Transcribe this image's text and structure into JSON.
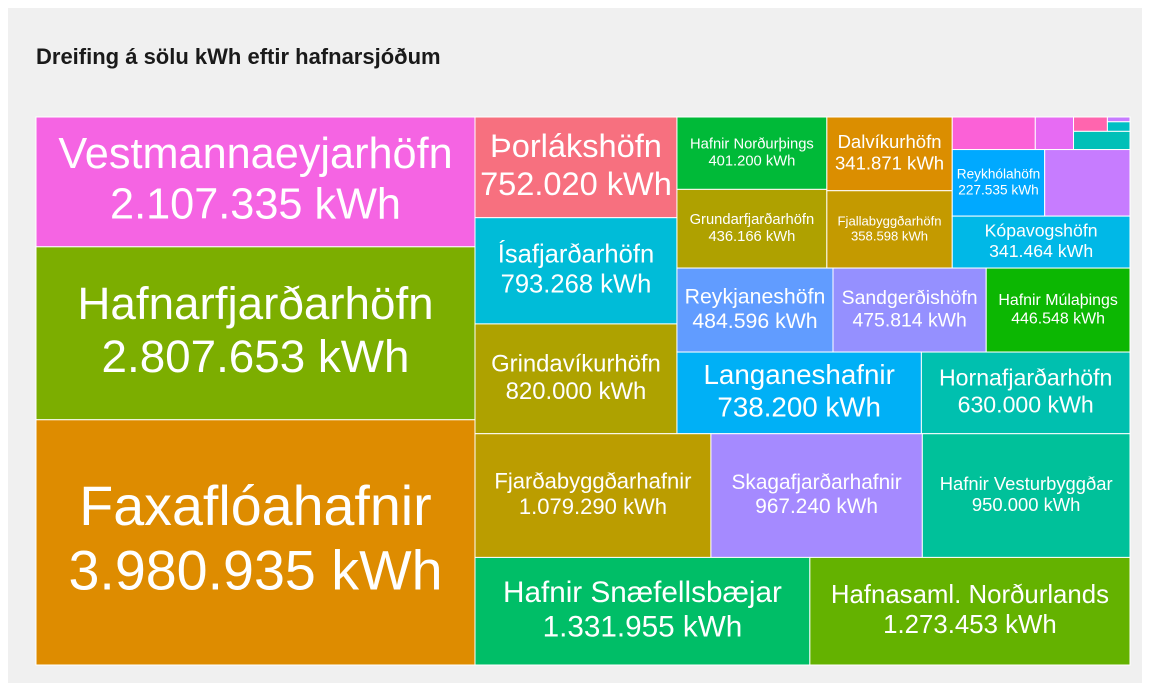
{
  "chart_data": {
    "type": "treemap",
    "title": "Dreifing á sölu kWh eftir hafnarsjóðum",
    "categories": [
      "Vestmannaeyjarhöfn",
      "Hafnarfjarðarhöfn",
      "Faxaflóahafnir",
      "Þorlákshöfn",
      "Ísafjarðarhöfn",
      "Grindavíkurhöfn",
      "Fjarðabyggðarhafnir",
      "Skagafjarðarhafnir",
      "Hafnir Vesturbyggðar",
      "Hafnir Snæfellsbæjar",
      "Hafnasaml. Norðurlands",
      "Hafnir Norðurþings",
      "Grundarfjarðarhöfn",
      "Dalvíkurhöfn",
      "Fjallabyggðarhöfn",
      "Reykhólahöfn",
      "Kópavogshöfn",
      "Reykjaneshöfn",
      "Sandgerðishöfn",
      "Hafnir Múlaþings",
      "Langaneshafnir",
      "Hornafjarðarhöfn",
      null,
      null,
      null,
      null,
      null,
      null,
      null
    ],
    "values": [
      2107335,
      2807653,
      3980935,
      752020,
      793268,
      820000,
      1079290,
      967240,
      950000,
      1331955,
      1273453,
      401200,
      436166,
      341871,
      358598,
      227535,
      341464,
      484596,
      475814,
      446548,
      738200,
      630000,
      210000,
      100000,
      46000,
      18000,
      4000,
      8000,
      38000
    ],
    "value_labels": [
      "2.107.335 kWh",
      "2.807.653 kWh",
      "3.980.935 kWh",
      "752.020 kWh",
      "793.268 kWh",
      "820.000 kWh",
      "1.079.290 kWh",
      "967.240 kWh",
      "950.000 kWh",
      "1.331.955 kWh",
      "1.273.453 kWh",
      "401.200 kWh",
      "436.166 kWh",
      "341.871 kWh",
      "358.598 kWh",
      "227.535 kWh",
      "341.464 kWh",
      "484.596 kWh",
      "475.814 kWh",
      "446.548 kWh",
      "738.200 kWh",
      "630.000 kWh",
      null,
      null,
      null,
      null,
      null,
      null,
      null
    ],
    "colors": [
      "#f564e3",
      "#7cae00",
      "#de8c00",
      "#f7707f",
      "#00bcd8",
      "#aea200",
      "#bb9d00",
      "#a58aff",
      "#00c19a",
      "#00be67",
      "#64b200",
      "#00ba38",
      "#afa100",
      "#db8e00",
      "#c49a00",
      "#00a9ff",
      "#00b8e7",
      "#619cff",
      "#9590ff",
      "#0cb702",
      "#00b0f6",
      "#00c0af",
      "#c77cff",
      "#fb61d7",
      "#e76bf3",
      "#ff65ae",
      "#c77cff",
      "#00bfc4",
      "#00c0b8"
    ]
  }
}
